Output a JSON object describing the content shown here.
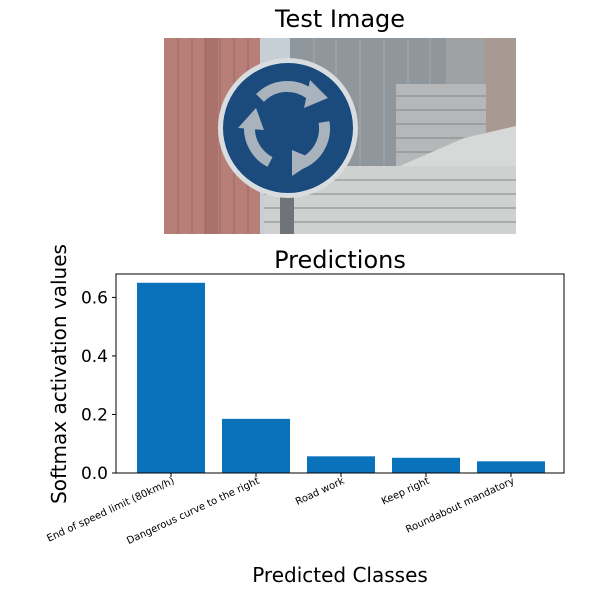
{
  "figure": {
    "image_title": "Test Image"
  },
  "colors": {
    "bar": "#0a72ba",
    "sign_blue": "#1b4a7c",
    "sign_arrow": "#a8b3bd"
  },
  "chart_data": {
    "type": "bar",
    "title": "Predictions",
    "xlabel": "Predicted Classes",
    "ylabel": "Softmax activation values",
    "categories": [
      "End of speed limit (80km/h)",
      "Dangerous curve to the right",
      "Road work",
      "Keep right",
      "Roundabout mandatory"
    ],
    "values": [
      0.65,
      0.185,
      0.057,
      0.052,
      0.04
    ],
    "ylim": [
      0,
      0.68
    ],
    "yticks": [
      "0.0",
      "0.2",
      "0.4",
      "0.6"
    ],
    "ytick_values": [
      0,
      0.2,
      0.4,
      0.6
    ],
    "grid": false
  }
}
